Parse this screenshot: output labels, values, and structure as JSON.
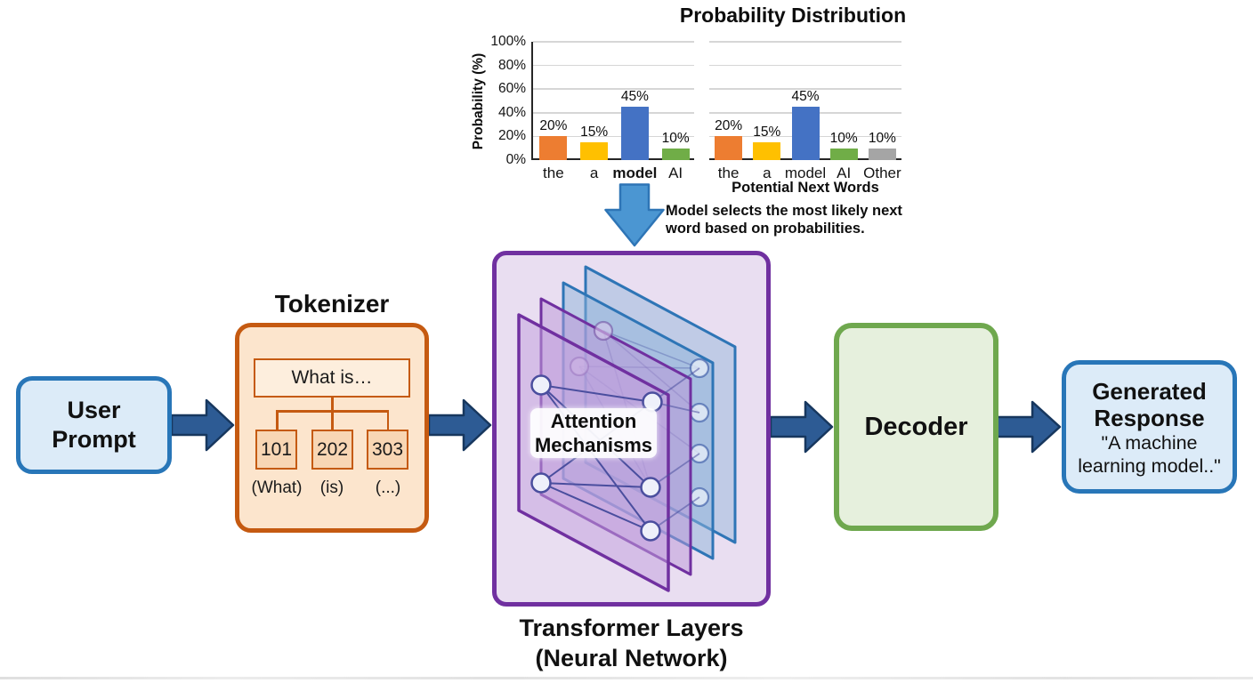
{
  "chart_section": {
    "title": "Probability Distribution",
    "annotation": [
      "Model selects the most likely next",
      "word based on probabilities."
    ]
  },
  "chart_data": [
    {
      "type": "bar",
      "title": "Probability Distribution",
      "categories": [
        "the",
        "a",
        "model",
        "AI"
      ],
      "values": [
        20,
        15,
        45,
        10
      ],
      "labels": [
        "20%",
        "15%",
        "45%",
        "10%"
      ],
      "colors": [
        "#ED7D31",
        "#FFC000",
        "#4472C4",
        "#70AD47"
      ],
      "bold_category_index": 2,
      "ylabel": "Probability (%)",
      "yticks": [
        0,
        20,
        40,
        60,
        80,
        100
      ],
      "ytick_labels": [
        "0%",
        "20%",
        "40%",
        "60%",
        "80%",
        "100%"
      ],
      "ylim": [
        0,
        100
      ],
      "grid": true,
      "yaxis_line": true,
      "xlabel": "",
      "legend": "none"
    },
    {
      "type": "bar",
      "categories": [
        "the",
        "a",
        "model",
        "AI",
        "Other"
      ],
      "values": [
        20,
        15,
        45,
        10,
        10
      ],
      "labels": [
        "20%",
        "15%",
        "45%",
        "10%",
        "10%"
      ],
      "colors": [
        "#ED7D31",
        "#FFC000",
        "#4472C4",
        "#70AD47",
        "#A5A5A5"
      ],
      "bold_category_index": -1,
      "ylabel": "",
      "yticks": [
        20,
        40,
        60,
        80,
        100
      ],
      "ytick_labels": [],
      "ylim": [
        0,
        100
      ],
      "grid": true,
      "yaxis_line": false,
      "xlabel": "Potential Next Words",
      "legend": "none"
    }
  ],
  "flow": {
    "user_prompt": {
      "line1": "User",
      "line2": "Prompt"
    },
    "tokenizer": {
      "title": "Tokenizer",
      "phrase": "What is…",
      "token_ids": [
        "101",
        "202",
        "303"
      ],
      "token_words": [
        "(What)",
        "(is)",
        "(...)"
      ]
    },
    "transformer": {
      "overlay_line1": "Attention",
      "overlay_line2": "Mechanisms",
      "caption_line1": "Transformer Layers",
      "caption_line2": "(Neural Network)"
    },
    "decoder": {
      "label": "Decoder"
    },
    "response": {
      "line1": "Generated",
      "line2": "Response",
      "quote_line1": "\"A machine",
      "quote_line2": "learning model..\""
    }
  },
  "colors": {
    "blue_box_fill": "#dcebf8",
    "blue_box_border": "#2876b8",
    "orange_box_fill": "#fce5cd",
    "orange_box_border": "#c55a11",
    "purple_box_fill": "#e9def1",
    "purple_box_border": "#7030a0",
    "green_box_fill": "#e6f0dd",
    "green_box_border": "#6fa84e",
    "flow_arrow_fill": "#2d5b94",
    "flow_arrow_border": "#17375e",
    "down_arrow_fill": "#4b96d2",
    "down_arrow_border": "#2e75b6",
    "bar_orange": "#ED7D31",
    "bar_yellow": "#FFC000",
    "bar_blue": "#4472C4",
    "bar_green": "#70AD47",
    "bar_gray": "#A5A5A5"
  }
}
